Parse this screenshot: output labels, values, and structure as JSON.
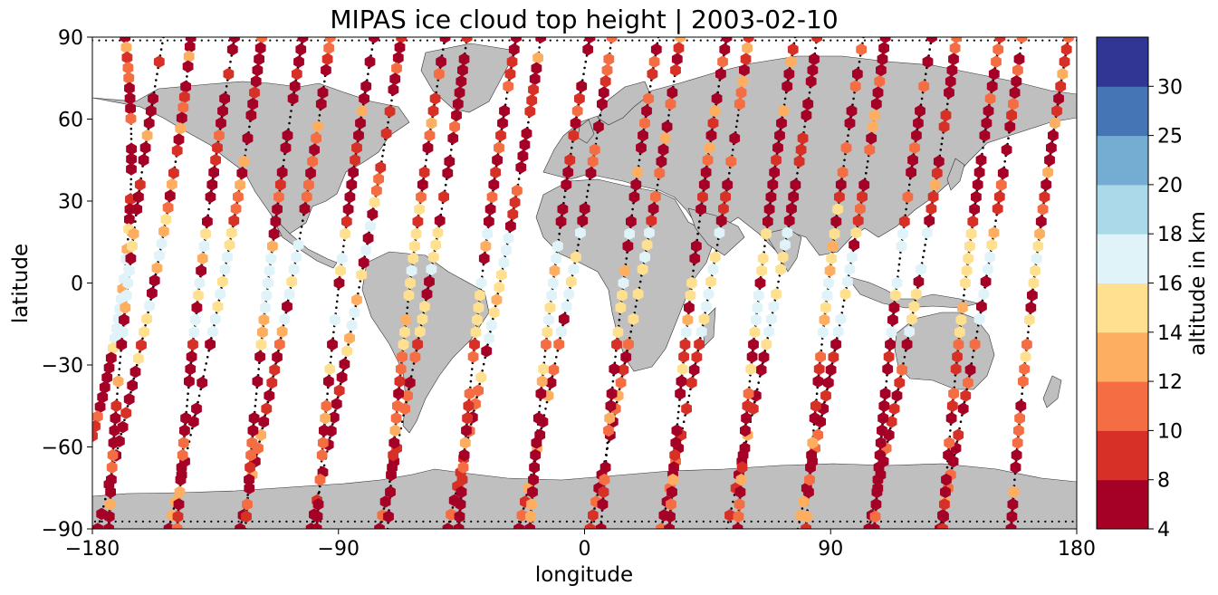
{
  "chart_data": {
    "type": "scatter",
    "title": "MIPAS ice cloud top height | 2003-02-10",
    "xlabel": "longitude",
    "ylabel": "latitude",
    "xlim": [
      -180,
      180
    ],
    "ylim": [
      -90,
      90
    ],
    "xticks": [
      "−180",
      "−90",
      "0",
      "90",
      "180"
    ],
    "xtick_values": [
      -180,
      -90,
      0,
      90,
      180
    ],
    "yticks": [
      "90",
      "60",
      "30",
      "0",
      "−30",
      "−60",
      "−90"
    ],
    "ytick_values": [
      90,
      60,
      30,
      0,
      -30,
      -60,
      -90
    ],
    "grid": false,
    "marker": "hexagon",
    "land_color": "#bfbfbf",
    "colorbar": {
      "label": "altitude in km",
      "boundaries": [
        4,
        8,
        10,
        12,
        14,
        16,
        18,
        20,
        25,
        30
      ],
      "tick_labels": [
        "4",
        "8",
        "10",
        "12",
        "14",
        "16",
        "18",
        "20",
        "25",
        "30"
      ],
      "colors": [
        "#a50026",
        "#d73027",
        "#f46d43",
        "#fdae61",
        "#fee090",
        "#e0f3f8",
        "#abd9e9",
        "#74add1",
        "#4575b4",
        "#313695"
      ]
    },
    "tracks": [
      {
        "direction": "descending",
        "start": [
          -168,
          90
        ],
        "end": [
          -180,
          -56
        ],
        "bend": [
          -160,
          15
        ]
      },
      {
        "direction": "descending",
        "start": [
          -144,
          90
        ],
        "end": [
          -178,
          -90
        ],
        "bend": [
          -150,
          20
        ]
      },
      {
        "direction": "descending",
        "start": [
          -118,
          90
        ],
        "end": [
          -152,
          -90
        ],
        "bend": [
          -128,
          10
        ]
      },
      {
        "direction": "descending",
        "start": [
          -93,
          90
        ],
        "end": [
          -126,
          -90
        ],
        "bend": [
          -103,
          10
        ]
      },
      {
        "direction": "descending",
        "start": [
          -67,
          90
        ],
        "end": [
          -100,
          -90
        ],
        "bend": [
          -78,
          15
        ]
      },
      {
        "direction": "descending",
        "start": [
          -43,
          90
        ],
        "end": [
          -75,
          -90
        ],
        "bend": [
          -53,
          10
        ]
      },
      {
        "direction": "descending",
        "start": [
          -16,
          90
        ],
        "end": [
          -50,
          -90
        ],
        "bend": [
          -26,
          15
        ]
      },
      {
        "direction": "descending",
        "start": [
          10,
          90
        ],
        "end": [
          -24,
          -90
        ],
        "bend": [
          -1,
          10
        ]
      },
      {
        "direction": "descending",
        "start": [
          35,
          90
        ],
        "end": [
          2,
          -90
        ],
        "bend": [
          24,
          10
        ]
      },
      {
        "direction": "descending",
        "start": [
          60,
          90
        ],
        "end": [
          28,
          -90
        ],
        "bend": [
          50,
          10
        ]
      },
      {
        "direction": "descending",
        "start": [
          85,
          90
        ],
        "end": [
          52,
          -90
        ],
        "bend": [
          75,
          10
        ]
      },
      {
        "direction": "descending",
        "start": [
          110,
          90
        ],
        "end": [
          78,
          -90
        ],
        "bend": [
          100,
          10
        ]
      },
      {
        "direction": "descending",
        "start": [
          136,
          90
        ],
        "end": [
          104,
          -90
        ],
        "bend": [
          126,
          10
        ]
      },
      {
        "direction": "descending",
        "start": [
          160,
          90
        ],
        "end": [
          130,
          -90
        ],
        "bend": [
          150,
          10
        ]
      },
      {
        "direction": "ascending",
        "start": [
          -174,
          -90
        ],
        "end": [
          -154,
          90
        ],
        "bend": [
          -170,
          0
        ]
      },
      {
        "direction": "ascending",
        "start": [
          -149,
          -90
        ],
        "end": [
          -128,
          90
        ],
        "bend": [
          -143,
          0
        ]
      },
      {
        "direction": "ascending",
        "start": [
          -124,
          -90
        ],
        "end": [
          -103,
          90
        ],
        "bend": [
          -118,
          0
        ]
      },
      {
        "direction": "ascending",
        "start": [
          -98,
          -90
        ],
        "end": [
          -77,
          90
        ],
        "bend": [
          -92,
          0
        ]
      },
      {
        "direction": "ascending",
        "start": [
          -72,
          -90
        ],
        "end": [
          -51,
          90
        ],
        "bend": [
          -66,
          0
        ]
      },
      {
        "direction": "ascending",
        "start": [
          -46,
          -90
        ],
        "end": [
          -25,
          90
        ],
        "bend": [
          -40,
          0
        ]
      },
      {
        "direction": "ascending",
        "start": [
          -20,
          -90
        ],
        "end": [
          2,
          90
        ],
        "bend": [
          -14,
          0
        ]
      },
      {
        "direction": "ascending",
        "start": [
          6,
          -90
        ],
        "end": [
          27,
          90
        ],
        "bend": [
          12,
          0
        ]
      },
      {
        "direction": "ascending",
        "start": [
          31,
          -90
        ],
        "end": [
          52,
          90
        ],
        "bend": [
          37,
          0
        ]
      },
      {
        "direction": "ascending",
        "start": [
          56,
          -90
        ],
        "end": [
          77,
          90
        ],
        "bend": [
          62,
          0
        ]
      },
      {
        "direction": "ascending",
        "start": [
          81,
          -90
        ],
        "end": [
          102,
          90
        ],
        "bend": [
          87,
          0
        ]
      },
      {
        "direction": "ascending",
        "start": [
          106,
          -90
        ],
        "end": [
          127,
          90
        ],
        "bend": [
          112,
          0
        ]
      },
      {
        "direction": "ascending",
        "start": [
          131,
          -90
        ],
        "end": [
          152,
          90
        ],
        "bend": [
          137,
          0
        ]
      },
      {
        "direction": "ascending",
        "start": [
          156,
          -90
        ],
        "end": [
          177,
          90
        ],
        "bend": [
          162,
          0
        ]
      }
    ]
  }
}
